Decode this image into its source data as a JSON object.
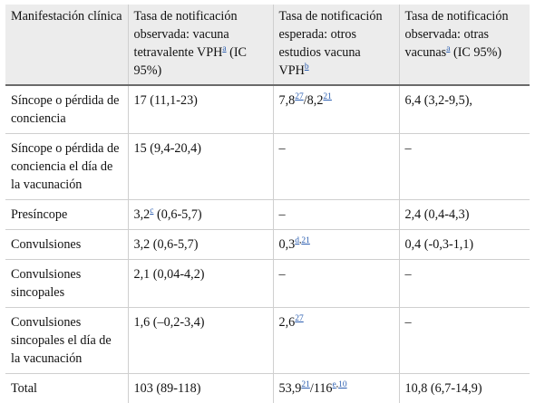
{
  "table": {
    "headers": [
      [
        {
          "t": "Manifestación clínica"
        }
      ],
      [
        {
          "t": "Tasa de notificación observada: vacuna tetravalente VPH"
        },
        {
          "sup": "a",
          "link": true
        },
        {
          "t": " (IC 95%)"
        }
      ],
      [
        {
          "t": "Tasa de notificación esperada: otros estudios vacuna VPH"
        },
        {
          "sup": "b",
          "link": true
        }
      ],
      [
        {
          "t": "Tasa de notificación observada: otras vacunas"
        },
        {
          "sup": "a",
          "link": true
        },
        {
          "t": " (IC 95%)"
        }
      ]
    ],
    "rows": [
      [
        [
          {
            "t": "Síncope o pérdida de conciencia"
          }
        ],
        [
          {
            "t": "17 (11,1-23)"
          }
        ],
        [
          {
            "t": "7,8"
          },
          {
            "sup": "27",
            "link": true
          },
          {
            "t": "/8,2"
          },
          {
            "sup": "21",
            "link": true
          }
        ],
        [
          {
            "t": "6,4 (3,2-9,5),"
          }
        ]
      ],
      [
        [
          {
            "t": "Síncope o pérdida de conciencia el día de la vacunación"
          }
        ],
        [
          {
            "t": "15 (9,4-20,4)"
          }
        ],
        [
          {
            "t": "–"
          }
        ],
        [
          {
            "t": "–"
          }
        ]
      ],
      [
        [
          {
            "t": "Presíncope"
          }
        ],
        [
          {
            "t": "3,2"
          },
          {
            "sup": "c",
            "link": true
          },
          {
            "t": " (0,6-5,7)"
          }
        ],
        [
          {
            "t": "–"
          }
        ],
        [
          {
            "t": "2,4 (0,4-4,3)"
          }
        ]
      ],
      [
        [
          {
            "t": "Convulsiones"
          }
        ],
        [
          {
            "t": "3,2 (0,6-5,7)"
          }
        ],
        [
          {
            "t": "0,3"
          },
          {
            "sup": "d",
            "link": true
          },
          {
            "sup": ",",
            "link": false
          },
          {
            "sup": "21",
            "link": true
          }
        ],
        [
          {
            "t": "0,4 (-0,3-1,1)"
          }
        ]
      ],
      [
        [
          {
            "t": "Convulsiones sincopales"
          }
        ],
        [
          {
            "t": "2,1 (0,04-4,2)"
          }
        ],
        [
          {
            "t": "–"
          }
        ],
        [
          {
            "t": "–"
          }
        ]
      ],
      [
        [
          {
            "t": "Convulsiones sincopales el día de la vacunación"
          }
        ],
        [
          {
            "t": "1,6 (–0,2-3,4)"
          }
        ],
        [
          {
            "t": "2,6"
          },
          {
            "sup": "27",
            "link": true
          }
        ],
        [
          {
            "t": "–"
          }
        ]
      ],
      [
        [
          {
            "t": "Total"
          }
        ],
        [
          {
            "t": "103 (89-118)"
          }
        ],
        [
          {
            "t": "53,9"
          },
          {
            "sup": "21",
            "link": true
          },
          {
            "t": "/116"
          },
          {
            "sup": "e",
            "link": true
          },
          {
            "sup": ",",
            "link": false
          },
          {
            "sup": "10",
            "link": true
          }
        ],
        [
          {
            "t": "10,8 (6,7-14,9)"
          }
        ]
      ]
    ]
  }
}
